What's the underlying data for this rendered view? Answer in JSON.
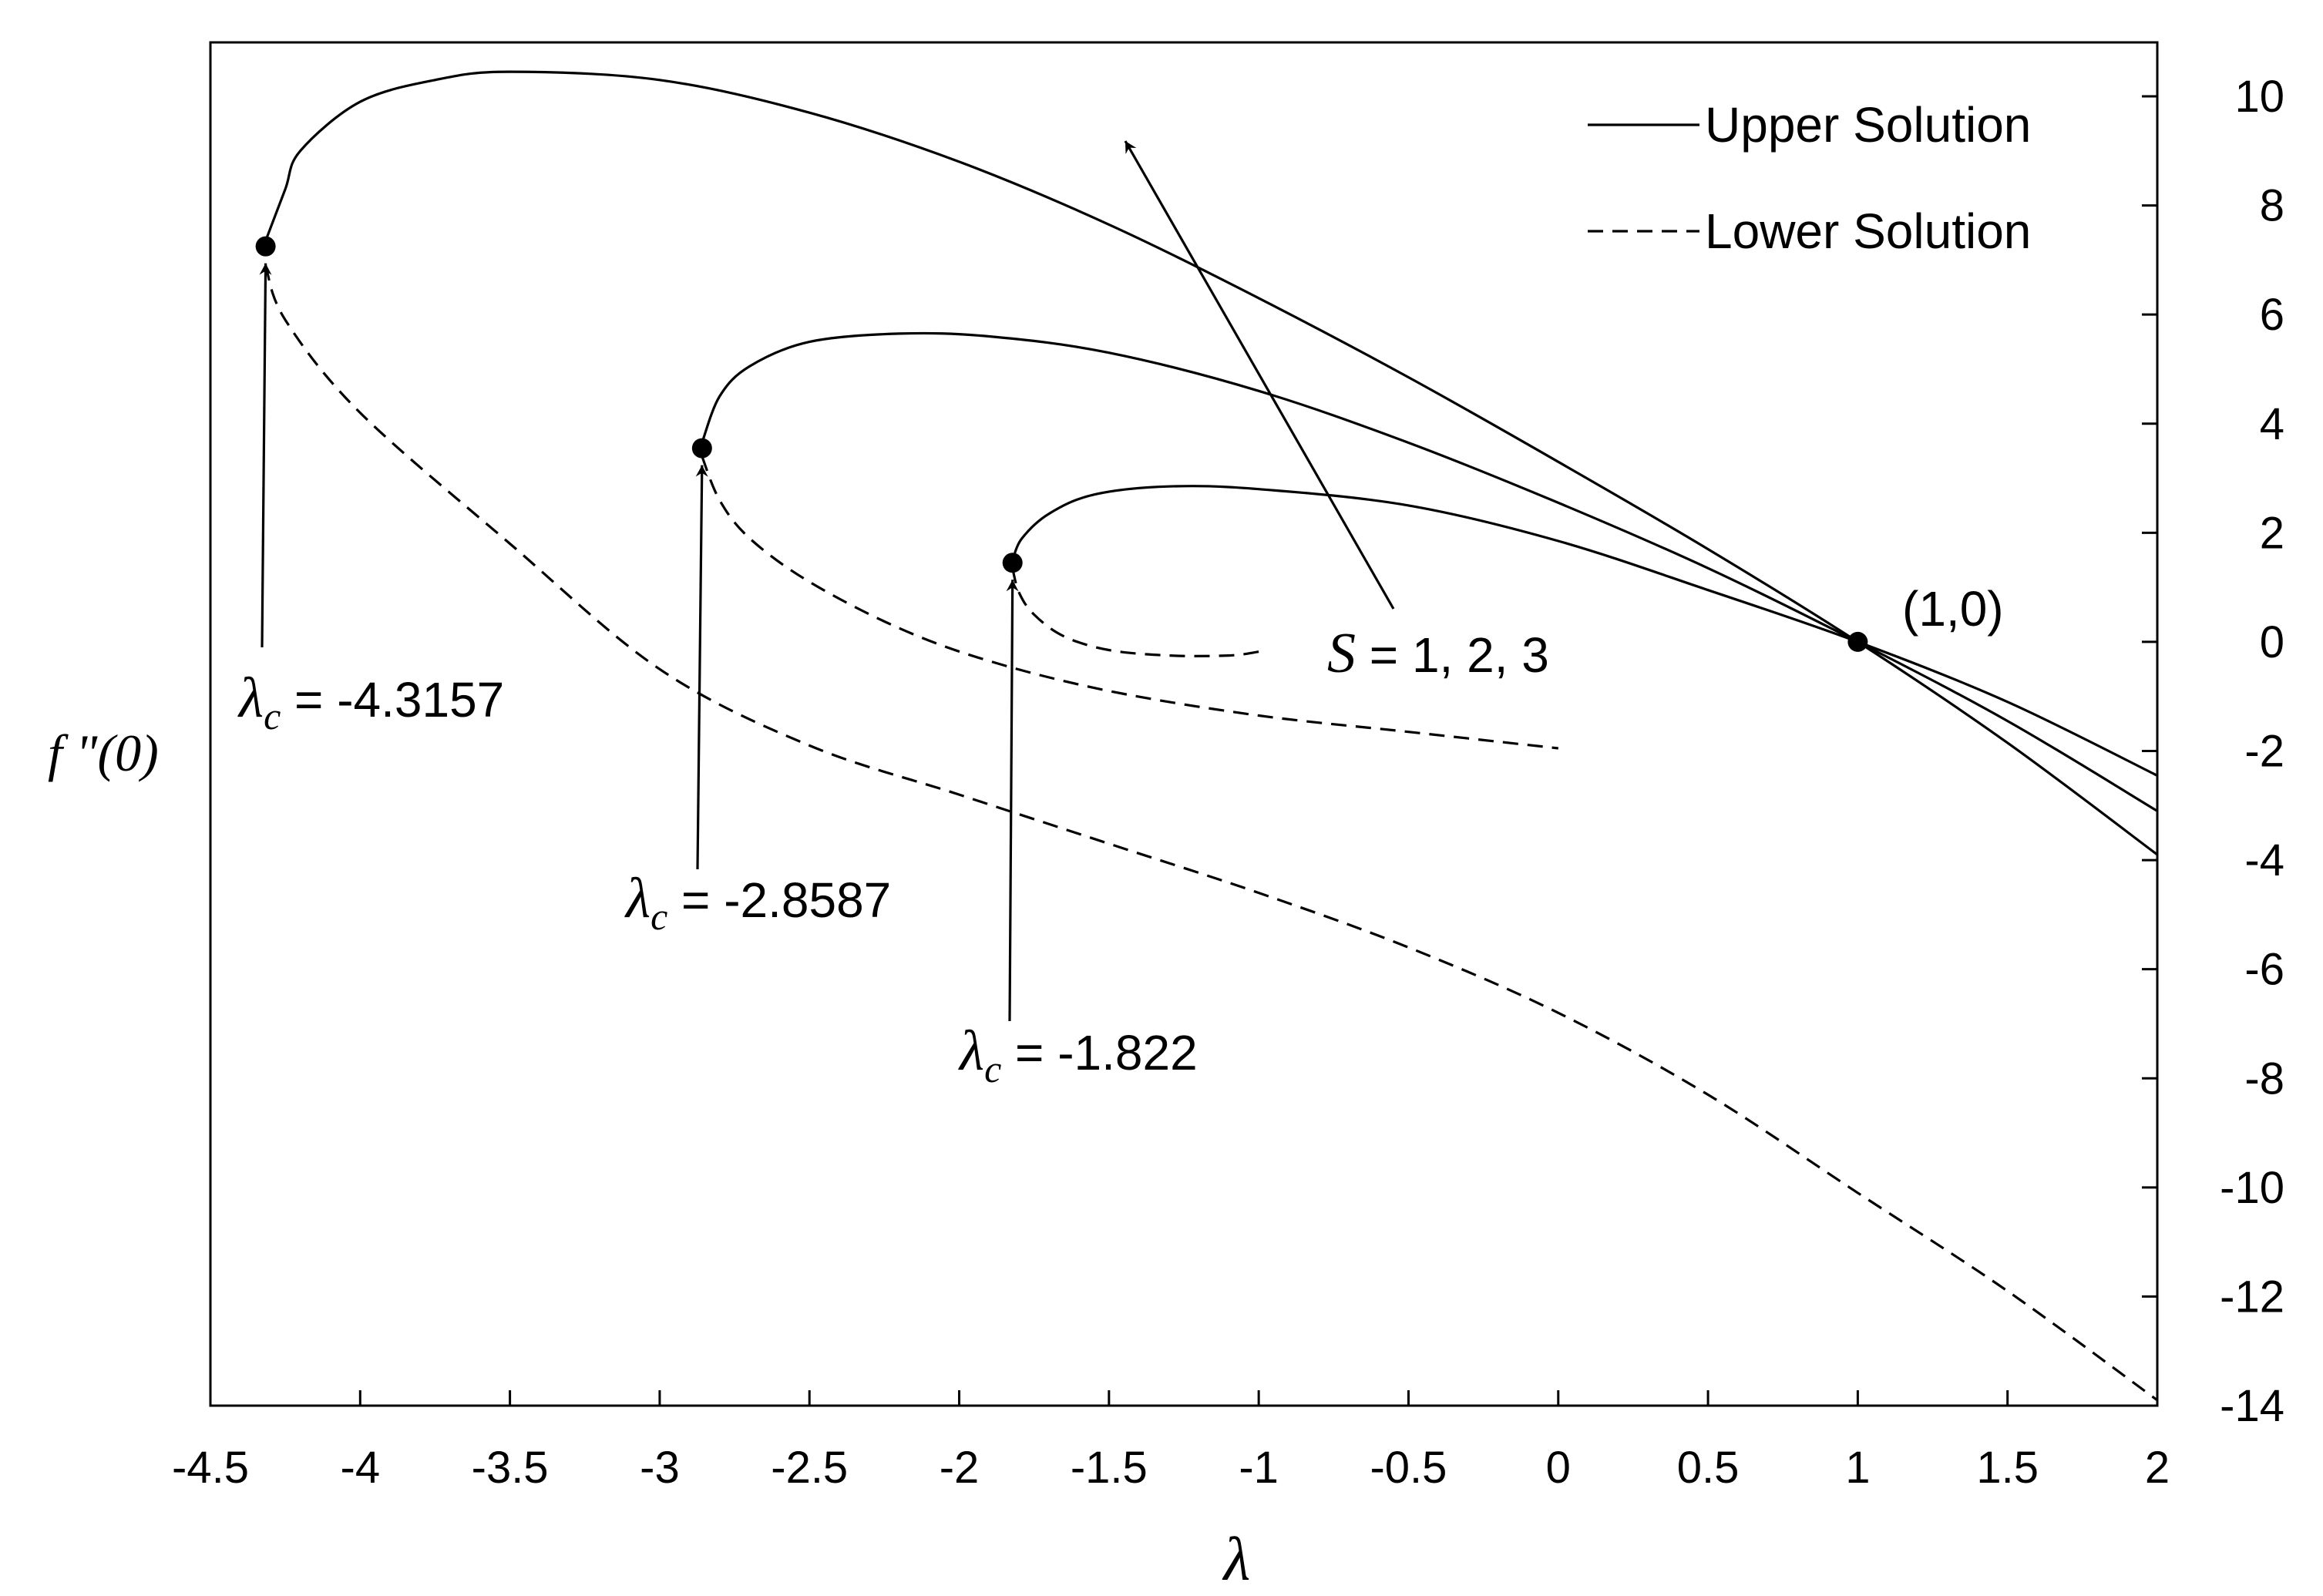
{
  "chart_data": {
    "type": "line",
    "title": "",
    "xlabel": "λ",
    "ylabel": "f \"(0)",
    "xlim": [
      -4.5,
      2
    ],
    "ylim": [
      -14,
      11
    ],
    "x_ticks": [
      "-4.5",
      "-4",
      "-3.5",
      "-3",
      "-2.5",
      "-2",
      "-1.5",
      "-1",
      "-0.5",
      "0",
      "0.5",
      "1",
      "1.5",
      "2"
    ],
    "y_ticks": [
      "10",
      "8",
      "6",
      "4",
      "2",
      "0",
      "-2",
      "-4",
      "-6",
      "-8",
      "-10",
      "-12",
      "-14"
    ],
    "y_axis_position": "right",
    "grid": false,
    "legend_position": "top-right",
    "legend": [
      {
        "label": "Upper Solution",
        "style": "solid"
      },
      {
        "label": "Lower Solution",
        "style": "dashed"
      }
    ],
    "series": [
      {
        "curve": "upper-s1",
        "style": "solid",
        "x": [
          -1.822,
          -1.79,
          -1.7,
          -1.55,
          -1.3,
          -1.0,
          -0.5,
          0.0,
          0.5,
          1.0,
          1.5,
          2.0
        ],
        "y": [
          1.5,
          1.9,
          2.35,
          2.7,
          2.85,
          2.8,
          2.5,
          1.85,
          0.95,
          0.0,
          -1.1,
          -2.45
        ]
      },
      {
        "curve": "lower-s1",
        "style": "dashed",
        "x": [
          -1.822,
          -1.8,
          -1.75,
          -1.65,
          -1.5,
          -1.3,
          -1.1,
          -1.0
        ],
        "y": [
          1.35,
          0.9,
          0.5,
          0.1,
          -0.15,
          -0.25,
          -0.25,
          -0.18
        ]
      },
      {
        "curve": "upper-s2",
        "style": "solid",
        "x": [
          -2.8587,
          -2.8,
          -2.7,
          -2.5,
          -2.2,
          -1.9,
          -1.5,
          -1.0,
          -0.5,
          0.0,
          0.5,
          1.0,
          1.5,
          2.0
        ],
        "y": [
          3.65,
          4.5,
          5.05,
          5.5,
          5.65,
          5.6,
          5.3,
          4.6,
          3.65,
          2.55,
          1.35,
          0.0,
          -1.45,
          -3.1
        ]
      },
      {
        "curve": "lower-s2",
        "style": "dashed",
        "x": [
          -2.8587,
          -2.8,
          -2.7,
          -2.5,
          -2.2,
          -1.9,
          -1.5,
          -1.0,
          -0.5,
          0.0
        ],
        "y": [
          3.4,
          2.6,
          1.9,
          1.1,
          0.25,
          -0.35,
          -0.9,
          -1.35,
          -1.65,
          -1.95
        ]
      },
      {
        "curve": "upper-s3",
        "style": "solid",
        "x": [
          -4.3157,
          -4.25,
          -4.2,
          -4.0,
          -3.75,
          -3.5,
          -3.0,
          -2.5,
          -2.0,
          -1.5,
          -1.0,
          -0.5,
          0.0,
          0.5,
          1.0,
          1.5,
          2.0
        ],
        "y": [
          7.35,
          8.3,
          9.0,
          9.9,
          10.3,
          10.45,
          10.3,
          9.7,
          8.8,
          7.65,
          6.3,
          4.85,
          3.3,
          1.7,
          0.0,
          -1.85,
          -3.9
        ]
      },
      {
        "curve": "lower-s3",
        "style": "dashed",
        "x": [
          -4.3157,
          -4.25,
          -4.0,
          -3.5,
          -3.0,
          -2.5,
          -2.0,
          -1.5,
          -1.0,
          -0.5,
          0.0,
          0.5,
          1.0,
          1.5,
          2.0
        ],
        "y": [
          6.9,
          5.9,
          4.2,
          1.8,
          -0.5,
          -1.9,
          -2.8,
          -3.7,
          -4.6,
          -5.6,
          -6.8,
          -8.3,
          -10.1,
          -11.9,
          -13.9
        ]
      }
    ],
    "markers": [
      {
        "x": -4.3157,
        "y": 7.25
      },
      {
        "x": -2.8587,
        "y": 3.55
      },
      {
        "x": -1.822,
        "y": 1.45
      },
      {
        "x": 1.0,
        "y": 0.0
      }
    ],
    "annotations": [
      {
        "id": "lc3",
        "symbol": "λ",
        "sub": "c",
        "text": " = -4.3157",
        "target": [
          -4.3157,
          7.25
        ]
      },
      {
        "id": "lc2",
        "symbol": "λ",
        "sub": "c",
        "text": " = -2.8587",
        "target": [
          -2.8587,
          3.55
        ]
      },
      {
        "id": "lc1",
        "symbol": "λ",
        "sub": "c",
        "text": " = -1.822",
        "target": [
          -1.822,
          1.45
        ]
      },
      {
        "id": "s",
        "symbol": "S",
        "text": " = 1, 2, 3"
      },
      {
        "id": "point",
        "text": "(1,0)"
      }
    ]
  }
}
